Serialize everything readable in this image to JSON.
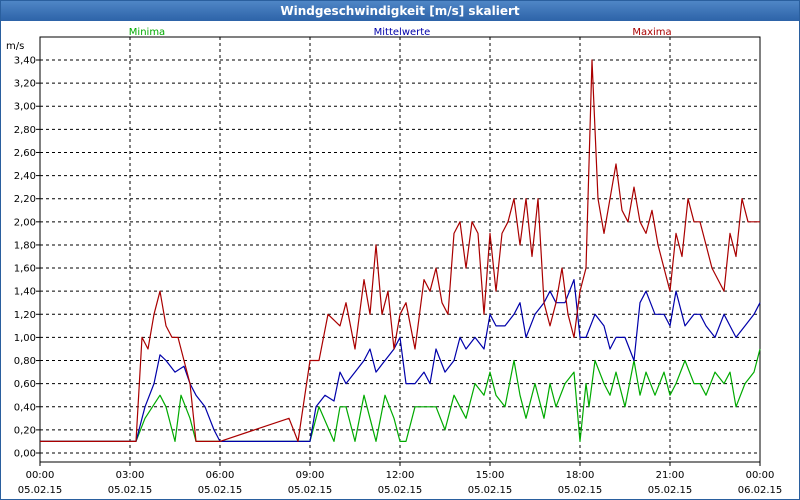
{
  "window": {
    "title": "Windgeschwindigkeit [m/s] skaliert"
  },
  "chart_data": {
    "type": "line",
    "title": "Windgeschwindigkeit [m/s] skaliert",
    "ylabel": "m/s",
    "ylim": [
      0,
      3.5
    ],
    "xlim": [
      "05.02.15 00:00",
      "06.02.15 00:00"
    ],
    "y_ticks": [
      "0,00",
      "0,20",
      "0,40",
      "0,60",
      "0,80",
      "1,00",
      "1,20",
      "1,40",
      "1,60",
      "1,80",
      "2,00",
      "2,20",
      "2,40",
      "2,60",
      "2,80",
      "3,00",
      "3,20",
      "3,40"
    ],
    "x_ticks": [
      {
        "time": "00:00",
        "date": "05.02.15"
      },
      {
        "time": "03:00",
        "date": "05.02.15"
      },
      {
        "time": "06:00",
        "date": "05.02.15"
      },
      {
        "time": "09:00",
        "date": "05.02.15"
      },
      {
        "time": "12:00",
        "date": "05.02.15"
      },
      {
        "time": "15:00",
        "date": "05.02.15"
      },
      {
        "time": "18:00",
        "date": "05.02.15"
      },
      {
        "time": "21:00",
        "date": "05.02.15"
      },
      {
        "time": "00:00",
        "date": "06.02.15"
      }
    ],
    "grid": true,
    "legend_position": "top",
    "series": [
      {
        "name": "Minima",
        "color": "#00aa00",
        "hours": [
          0,
          3.2,
          3.5,
          4.0,
          4.2,
          4.5,
          4.7,
          5.0,
          5.2,
          5.5,
          6.0,
          8.5,
          9.0,
          9.3,
          9.8,
          10.0,
          10.2,
          10.5,
          10.8,
          11.0,
          11.2,
          11.5,
          11.8,
          12.0,
          12.2,
          12.5,
          12.8,
          13.0,
          13.2,
          13.5,
          13.8,
          14.0,
          14.2,
          14.5,
          14.8,
          15.0,
          15.2,
          15.5,
          15.8,
          16.0,
          16.2,
          16.5,
          16.8,
          17.0,
          17.2,
          17.5,
          17.8,
          18.0,
          18.2,
          18.3,
          18.5,
          18.8,
          19.0,
          19.2,
          19.5,
          19.8,
          20.0,
          20.2,
          20.5,
          20.8,
          21.0,
          21.2,
          21.5,
          21.8,
          22.0,
          22.2,
          22.5,
          22.8,
          23.0,
          23.2,
          23.5,
          23.8,
          24.0
        ],
        "values": [
          0.1,
          0.1,
          0.3,
          0.5,
          0.4,
          0.1,
          0.5,
          0.3,
          0.1,
          0.1,
          0.1,
          0.1,
          0.1,
          0.4,
          0.1,
          0.4,
          0.4,
          0.1,
          0.5,
          0.3,
          0.1,
          0.5,
          0.3,
          0.1,
          0.1,
          0.4,
          0.4,
          0.4,
          0.4,
          0.2,
          0.5,
          0.4,
          0.3,
          0.6,
          0.5,
          0.7,
          0.5,
          0.4,
          0.8,
          0.5,
          0.3,
          0.6,
          0.3,
          0.6,
          0.4,
          0.6,
          0.7,
          0.1,
          0.6,
          0.4,
          0.8,
          0.6,
          0.5,
          0.7,
          0.4,
          0.8,
          0.5,
          0.7,
          0.5,
          0.7,
          0.5,
          0.6,
          0.8,
          0.6,
          0.6,
          0.5,
          0.7,
          0.6,
          0.7,
          0.4,
          0.6,
          0.7,
          0.9
        ]
      },
      {
        "name": "Mittelwerte",
        "color": "#0000aa",
        "hours": [
          0,
          3.2,
          3.5,
          3.8,
          4.0,
          4.2,
          4.5,
          4.8,
          5.0,
          5.2,
          5.5,
          5.8,
          6.0,
          8.5,
          9.0,
          9.2,
          9.5,
          9.8,
          10.0,
          10.2,
          10.5,
          10.8,
          11.0,
          11.2,
          11.5,
          11.8,
          12.0,
          12.2,
          12.5,
          12.8,
          13.0,
          13.2,
          13.5,
          13.8,
          14.0,
          14.2,
          14.5,
          14.8,
          15.0,
          15.2,
          15.5,
          15.8,
          16.0,
          16.2,
          16.5,
          16.8,
          17.0,
          17.2,
          17.5,
          17.8,
          18.0,
          18.2,
          18.5,
          18.8,
          19.0,
          19.2,
          19.5,
          19.8,
          20.0,
          20.2,
          20.5,
          20.8,
          21.0,
          21.2,
          21.5,
          21.8,
          22.0,
          22.2,
          22.5,
          22.8,
          23.0,
          23.2,
          23.5,
          23.8,
          24.0
        ],
        "values": [
          0.1,
          0.1,
          0.4,
          0.6,
          0.85,
          0.8,
          0.7,
          0.75,
          0.6,
          0.5,
          0.4,
          0.2,
          0.1,
          0.1,
          0.1,
          0.4,
          0.5,
          0.45,
          0.7,
          0.6,
          0.7,
          0.8,
          0.9,
          0.7,
          0.8,
          0.9,
          1.0,
          0.6,
          0.6,
          0.7,
          0.6,
          0.9,
          0.7,
          0.8,
          1.0,
          0.9,
          1.0,
          0.9,
          1.2,
          1.1,
          1.1,
          1.2,
          1.3,
          1.0,
          1.2,
          1.3,
          1.4,
          1.3,
          1.3,
          1.5,
          1.0,
          1.0,
          1.2,
          1.1,
          0.9,
          1.0,
          1.0,
          0.8,
          1.3,
          1.4,
          1.2,
          1.2,
          1.1,
          1.4,
          1.1,
          1.2,
          1.2,
          1.1,
          1.0,
          1.2,
          1.1,
          1.0,
          1.1,
          1.2,
          1.3
        ]
      },
      {
        "name": "Maxima",
        "color": "#aa0000",
        "hours": [
          0,
          3.2,
          3.4,
          3.6,
          3.8,
          4.0,
          4.2,
          4.4,
          4.6,
          4.8,
          5.0,
          5.2,
          5.5,
          5.8,
          6.0,
          8.3,
          8.6,
          9.0,
          9.3,
          9.6,
          10.0,
          10.2,
          10.5,
          10.8,
          11.0,
          11.2,
          11.4,
          11.6,
          11.8,
          12.0,
          12.2,
          12.5,
          12.8,
          13.0,
          13.2,
          13.4,
          13.6,
          13.8,
          14.0,
          14.2,
          14.4,
          14.6,
          14.8,
          15.0,
          15.2,
          15.4,
          15.6,
          15.8,
          16.0,
          16.2,
          16.4,
          16.6,
          16.8,
          17.0,
          17.2,
          17.4,
          17.6,
          17.8,
          18.0,
          18.2,
          18.4,
          18.6,
          18.8,
          19.0,
          19.2,
          19.4,
          19.6,
          19.8,
          20.0,
          20.2,
          20.4,
          20.6,
          20.8,
          21.0,
          21.2,
          21.4,
          21.6,
          21.8,
          22.0,
          22.2,
          22.4,
          22.6,
          22.8,
          23.0,
          23.2,
          23.4,
          23.6,
          23.8,
          24.0
        ],
        "values": [
          0.1,
          0.1,
          1.0,
          0.9,
          1.2,
          1.4,
          1.1,
          1.0,
          1.0,
          0.8,
          0.6,
          0.1,
          0.1,
          0.1,
          0.1,
          0.3,
          0.1,
          0.8,
          0.8,
          1.2,
          1.1,
          1.3,
          0.9,
          1.5,
          1.2,
          1.8,
          1.2,
          1.4,
          0.9,
          1.2,
          1.3,
          0.9,
          1.5,
          1.4,
          1.6,
          1.3,
          1.2,
          1.9,
          2.0,
          1.6,
          2.0,
          1.9,
          1.2,
          1.9,
          1.4,
          1.9,
          2.0,
          2.2,
          1.8,
          2.2,
          1.7,
          2.2,
          1.3,
          1.1,
          1.3,
          1.6,
          1.2,
          1.0,
          1.4,
          1.6,
          3.4,
          2.2,
          1.9,
          2.2,
          2.5,
          2.1,
          2.0,
          2.3,
          2.0,
          1.9,
          2.1,
          1.8,
          1.6,
          1.4,
          1.9,
          1.7,
          2.2,
          2.0,
          2.0,
          1.8,
          1.6,
          1.5,
          1.4,
          1.9,
          1.7,
          2.2,
          2.0,
          2.0,
          2.0
        ]
      }
    ]
  }
}
